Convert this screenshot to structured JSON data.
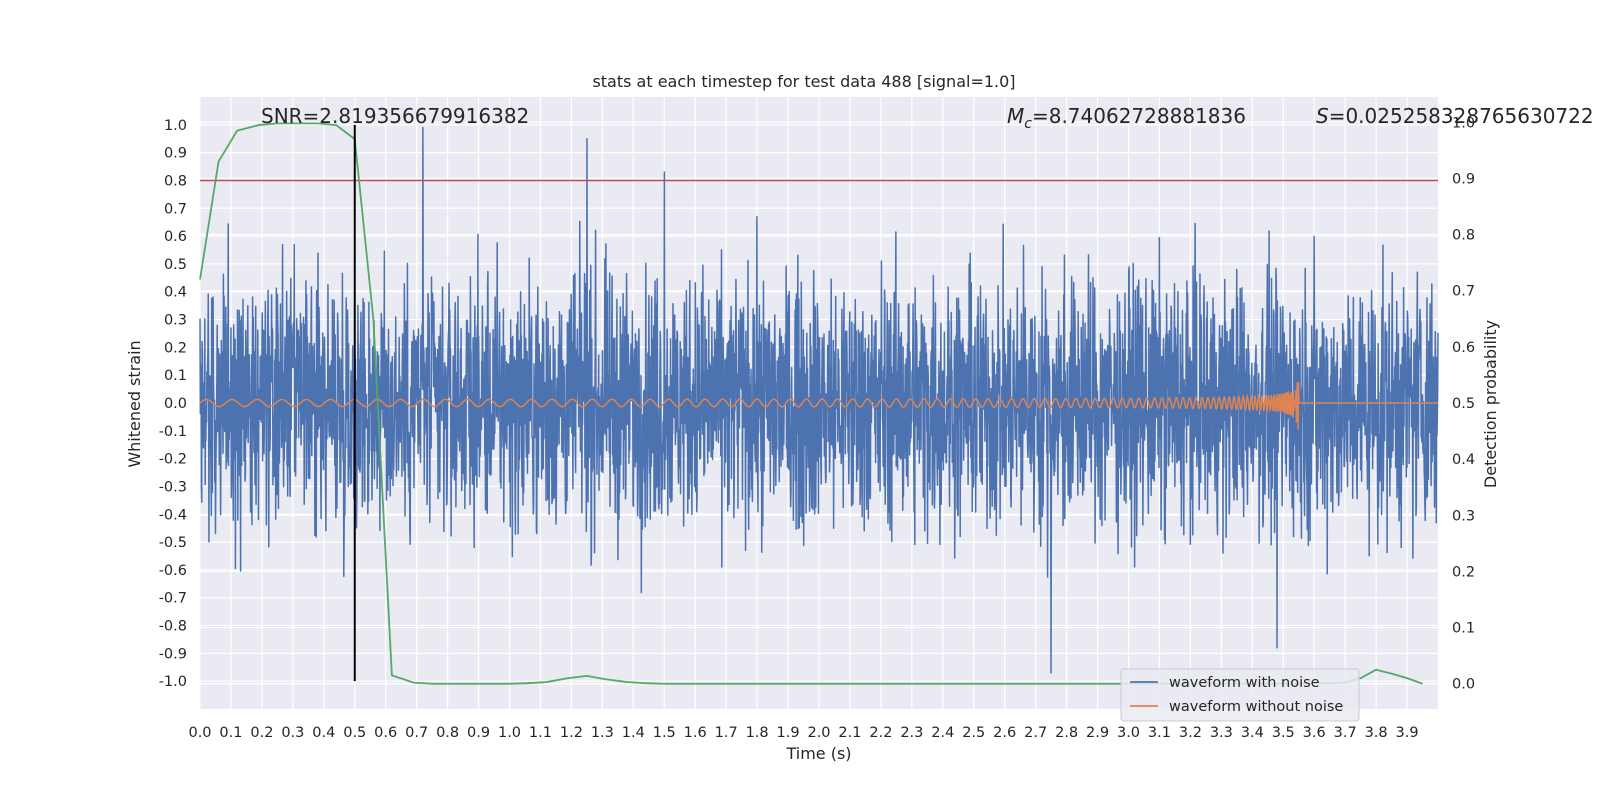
{
  "chart_data": {
    "type": "line",
    "title": "stats at each timestep for test data 488 [signal=1.0]",
    "xlabel": "Time (s)",
    "ylabel": "Whitened strain",
    "y2label": "Detection probability",
    "xlim": [
      0.0,
      4.0
    ],
    "ylim": [
      -1.1,
      1.1
    ],
    "y2lim": [
      -0.045,
      1.045
    ],
    "xticks": [
      "0.0",
      "0.1",
      "0.2",
      "0.3",
      "0.4",
      "0.5",
      "0.6",
      "0.7",
      "0.8",
      "0.9",
      "1.0",
      "1.1",
      "1.2",
      "1.3",
      "1.4",
      "1.5",
      "1.6",
      "1.7",
      "1.8",
      "1.9",
      "2.0",
      "2.1",
      "2.2",
      "2.3",
      "2.4",
      "2.5",
      "2.6",
      "2.7",
      "2.8",
      "2.9",
      "3.0",
      "3.1",
      "3.2",
      "3.3",
      "3.4",
      "3.5",
      "3.6",
      "3.7",
      "3.8",
      "3.9"
    ],
    "yticks": [
      "1.0",
      "0.9",
      "0.8",
      "0.7",
      "0.6",
      "0.5",
      "0.4",
      "0.3",
      "0.2",
      "0.1",
      "0.0",
      "-0.1",
      "-0.2",
      "-0.3",
      "-0.4",
      "-0.5",
      "-0.6",
      "-0.7",
      "-0.8",
      "-0.9",
      "-1.0"
    ],
    "y2ticks": [
      "1.0",
      "0.9",
      "0.8",
      "0.7",
      "0.6",
      "0.5",
      "0.4",
      "0.3",
      "0.2",
      "0.1",
      "0.0"
    ],
    "threshold": 0.8,
    "marker_time": 0.5,
    "annotations": {
      "snr": "SNR=2.819356679916382",
      "mc": "M",
      "mc_sub": "c",
      "mc_value": "=8.74062728881836",
      "s": "S",
      "s_value": "=0.025258328765630722"
    },
    "series": [
      {
        "name": "waveform with noise",
        "color": "#4c72b0",
        "noise_amplitude": 0.25,
        "peaks": [
          [
            0.72,
            0.99
          ],
          [
            1.25,
            0.95
          ],
          [
            1.5,
            0.83
          ],
          [
            2.75,
            -0.97
          ],
          [
            3.48,
            -0.88
          ]
        ]
      },
      {
        "name": "waveform without noise",
        "color": "#dd8452",
        "chirp_start_amplitude": 0.01,
        "merger_time": 3.55,
        "merger_amplitude": 0.12
      },
      {
        "name": "detection probability",
        "color": "#55a868",
        "axis": "right",
        "x": [
          0.0,
          0.06,
          0.12,
          0.19,
          0.25,
          0.31,
          0.38,
          0.44,
          0.5,
          0.56,
          0.62,
          0.69,
          0.75,
          0.81,
          0.88,
          0.94,
          1.0,
          1.06,
          1.12,
          1.19,
          1.25,
          1.31,
          1.38,
          1.44,
          1.5,
          1.6,
          2.0,
          2.5,
          3.0,
          3.5,
          3.7,
          3.75,
          3.8,
          3.85,
          3.9,
          3.95
        ],
        "y": [
          0.72,
          0.93,
          0.985,
          0.995,
          0.998,
          0.998,
          0.998,
          0.995,
          0.97,
          0.65,
          0.015,
          0.002,
          0.0,
          0.0,
          0.0,
          0.0,
          0.0,
          0.001,
          0.003,
          0.01,
          0.014,
          0.008,
          0.003,
          0.001,
          0.0,
          0.0,
          0.0,
          0.0,
          0.0,
          0.0,
          0.002,
          0.01,
          0.025,
          0.018,
          0.01,
          0.0
        ]
      }
    ],
    "legend": {
      "position": "lower-right",
      "entries": [
        "waveform with noise",
        "waveform without noise"
      ]
    },
    "grid": true
  }
}
